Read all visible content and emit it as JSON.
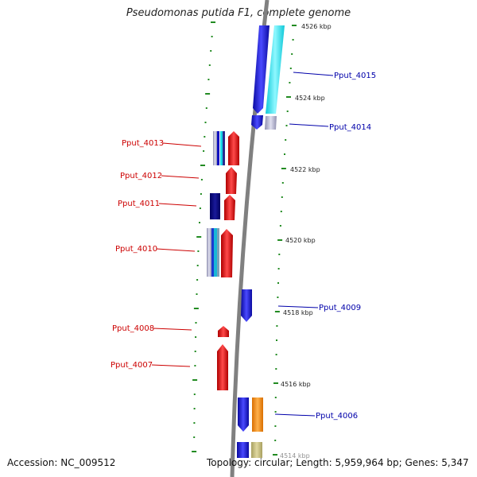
{
  "title": "Pseudomonas putida F1, complete genome",
  "accession_text": "Accession: NC_009512",
  "topology_text": "Topology: circular; Length: 5,959,964 bp; Genes: 5,347",
  "kbp_labels": [
    "4526 kbp",
    "4524 kbp",
    "4522 kbp",
    "4520 kbp",
    "4518 kbp",
    "4516 kbp",
    "4514 kbp"
  ],
  "genes": [
    {
      "id": "Pput_4015",
      "color": "blue"
    },
    {
      "id": "Pput_4014",
      "color": "blue"
    },
    {
      "id": "Pput_4013",
      "color": "red"
    },
    {
      "id": "Pput_4012",
      "color": "red"
    },
    {
      "id": "Pput_4011",
      "color": "red"
    },
    {
      "id": "Pput_4010",
      "color": "red"
    },
    {
      "id": "Pput_4009",
      "color": "blue"
    },
    {
      "id": "Pput_4008",
      "color": "red"
    },
    {
      "id": "Pput_4007",
      "color": "red"
    },
    {
      "id": "Pput_4006",
      "color": "blue"
    }
  ],
  "colors": {
    "forward_label": "#0000aa",
    "reverse_label": "#cc0000",
    "forward_gene": "#1414e6",
    "reverse_gene": "#e61414",
    "cyan_feature": "#19e6f0",
    "orange_feature": "#ff8c00",
    "tick_green": "#228b22",
    "backbone": "#808080"
  }
}
